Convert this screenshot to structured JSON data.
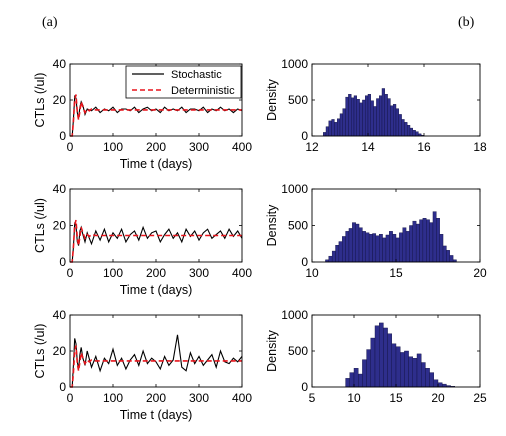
{
  "panel_labels": {
    "left": "(a)",
    "right": "(b)"
  },
  "legend": {
    "stochastic": "Stochastic",
    "deterministic": "Deterministic"
  },
  "colors": {
    "stochastic": "#000000",
    "deterministic": "#e8141b",
    "bar_fill": "#2e2e8c",
    "bar_edge": "#101040"
  },
  "chart_data": [
    {
      "type": "line",
      "xlabel": "Time t (days)",
      "ylabel": "CTLs (/ul)",
      "xlim": [
        0,
        400
      ],
      "ylim": [
        0,
        40
      ],
      "xticks": [
        0,
        100,
        200,
        300,
        400
      ],
      "yticks": [
        0,
        20,
        40
      ],
      "legend_position": "top-right",
      "series": [
        {
          "name": "Stochastic",
          "x": [
            0,
            5,
            8,
            11,
            14,
            17,
            20,
            23,
            26,
            30,
            35,
            40,
            50,
            60,
            70,
            80,
            90,
            100,
            110,
            120,
            130,
            140,
            150,
            160,
            170,
            180,
            190,
            200,
            210,
            220,
            230,
            240,
            250,
            260,
            270,
            280,
            290,
            300,
            310,
            320,
            330,
            340,
            350,
            360,
            370,
            380,
            390,
            400
          ],
          "y": [
            0,
            0,
            9,
            22,
            21,
            13,
            10,
            16,
            19,
            17,
            12,
            15,
            14,
            16,
            13,
            15,
            14,
            16,
            13,
            15,
            15,
            14,
            16,
            13,
            15,
            16,
            14,
            15,
            13,
            16,
            14,
            15,
            14,
            16,
            13,
            15,
            15,
            14,
            16,
            13,
            15,
            14,
            16,
            14,
            15,
            13,
            15,
            14
          ]
        },
        {
          "name": "Deterministic",
          "x": [
            0,
            5,
            8,
            11,
            14,
            17,
            20,
            23,
            26,
            30,
            35,
            40,
            45,
            50,
            60,
            70,
            80,
            400
          ],
          "y": [
            0,
            0,
            8,
            20,
            23,
            13,
            9,
            14,
            19,
            16,
            13,
            15,
            14,
            15,
            14.5,
            14.5,
            14.5,
            14.5
          ]
        }
      ]
    },
    {
      "type": "bar",
      "xlabel": "",
      "ylabel": "Density",
      "xlim": [
        12,
        18
      ],
      "ylim": [
        0,
        1000
      ],
      "xticks": [
        12,
        14,
        16,
        18
      ],
      "yticks": [
        0,
        500,
        1000
      ],
      "categories": [
        12.45,
        12.55,
        12.65,
        12.75,
        12.85,
        12.95,
        13.05,
        13.15,
        13.25,
        13.35,
        13.45,
        13.55,
        13.65,
        13.75,
        13.85,
        13.95,
        14.05,
        14.15,
        14.25,
        14.35,
        14.45,
        14.55,
        14.65,
        14.75,
        14.85,
        14.95,
        15.05,
        15.15,
        15.25,
        15.35,
        15.45,
        15.55,
        15.65,
        15.75,
        15.85,
        15.95
      ],
      "values": [
        50,
        130,
        210,
        230,
        190,
        240,
        310,
        380,
        540,
        580,
        530,
        560,
        510,
        460,
        500,
        560,
        580,
        490,
        410,
        520,
        560,
        660,
        580,
        520,
        420,
        440,
        380,
        300,
        230,
        190,
        150,
        110,
        80,
        60,
        30,
        10
      ]
    },
    {
      "type": "line",
      "xlabel": "Time t (days)",
      "ylabel": "CTLs (/ul)",
      "xlim": [
        0,
        400
      ],
      "ylim": [
        0,
        40
      ],
      "xticks": [
        0,
        100,
        200,
        300,
        400
      ],
      "yticks": [
        0,
        20,
        40
      ],
      "series": [
        {
          "name": "Stochastic",
          "x": [
            0,
            5,
            8,
            11,
            14,
            17,
            20,
            23,
            26,
            30,
            35,
            40,
            50,
            60,
            70,
            80,
            90,
            100,
            110,
            120,
            130,
            140,
            150,
            160,
            170,
            180,
            190,
            200,
            210,
            220,
            230,
            240,
            250,
            260,
            270,
            280,
            290,
            300,
            310,
            320,
            330,
            340,
            350,
            360,
            370,
            380,
            390,
            400
          ],
          "y": [
            0,
            0,
            8,
            21,
            20,
            11,
            9,
            17,
            19,
            15,
            11,
            16,
            10,
            17,
            12,
            18,
            11,
            16,
            13,
            18,
            11,
            15,
            17,
            12,
            19,
            13,
            16,
            17,
            11,
            15,
            18,
            13,
            16,
            11,
            18,
            14,
            17,
            12,
            16,
            18,
            13,
            15,
            17,
            13,
            18,
            14,
            17,
            13
          ]
        },
        {
          "name": "Deterministic",
          "x": [
            0,
            5,
            8,
            11,
            14,
            17,
            20,
            23,
            26,
            30,
            35,
            40,
            45,
            50,
            60,
            70,
            80,
            400
          ],
          "y": [
            0,
            0,
            8,
            20,
            23,
            13,
            9,
            14,
            19,
            16,
            13,
            15,
            14,
            15,
            14.5,
            14.5,
            14.5,
            14.5
          ]
        }
      ]
    },
    {
      "type": "bar",
      "xlabel": "",
      "ylabel": "Density",
      "xlim": [
        10,
        20
      ],
      "ylim": [
        0,
        1000
      ],
      "xticks": [
        10,
        15,
        20
      ],
      "yticks": [
        0,
        500,
        1000
      ],
      "categories": [
        10.9,
        11.1,
        11.3,
        11.5,
        11.7,
        11.9,
        12.1,
        12.3,
        12.5,
        12.7,
        12.9,
        13.1,
        13.3,
        13.5,
        13.7,
        13.9,
        14.1,
        14.3,
        14.5,
        14.7,
        14.9,
        15.1,
        15.3,
        15.5,
        15.7,
        15.9,
        16.1,
        16.3,
        16.5,
        16.7,
        16.9,
        17.1,
        17.3,
        17.5,
        17.7,
        17.9,
        18.1,
        18.3,
        18.5
      ],
      "values": [
        30,
        80,
        150,
        230,
        280,
        350,
        420,
        460,
        540,
        520,
        470,
        420,
        400,
        380,
        390,
        360,
        380,
        330,
        370,
        420,
        380,
        330,
        400,
        470,
        420,
        500,
        560,
        520,
        580,
        600,
        580,
        540,
        690,
        600,
        380,
        220,
        160,
        90,
        30
      ]
    },
    {
      "type": "line",
      "xlabel": "Time t (days)",
      "ylabel": "CTLs (/ul)",
      "xlim": [
        0,
        400
      ],
      "ylim": [
        0,
        40
      ],
      "xticks": [
        0,
        100,
        200,
        300,
        400
      ],
      "yticks": [
        0,
        20,
        40
      ],
      "series": [
        {
          "name": "Stochastic",
          "x": [
            0,
            5,
            8,
            11,
            14,
            17,
            20,
            23,
            26,
            30,
            35,
            40,
            50,
            60,
            70,
            80,
            90,
            100,
            110,
            120,
            130,
            140,
            150,
            160,
            170,
            180,
            190,
            200,
            210,
            220,
            230,
            240,
            250,
            260,
            270,
            280,
            290,
            300,
            310,
            320,
            330,
            340,
            350,
            360,
            370,
            380,
            390,
            400
          ],
          "y": [
            0,
            0,
            12,
            27,
            24,
            14,
            10,
            18,
            22,
            16,
            12,
            20,
            11,
            17,
            9,
            16,
            13,
            21,
            12,
            16,
            10,
            15,
            18,
            12,
            20,
            13,
            16,
            14,
            10,
            17,
            12,
            15,
            29,
            11,
            9,
            19,
            13,
            17,
            12,
            15,
            18,
            11,
            20,
            14,
            13,
            16,
            14,
            17
          ]
        },
        {
          "name": "Deterministic",
          "x": [
            0,
            5,
            8,
            11,
            14,
            17,
            20,
            23,
            26,
            30,
            35,
            40,
            45,
            50,
            60,
            70,
            80,
            400
          ],
          "y": [
            0,
            0,
            8,
            20,
            23,
            13,
            9,
            14,
            19,
            16,
            13,
            15,
            14,
            15,
            14.5,
            14.5,
            14.5,
            14.5
          ]
        }
      ]
    },
    {
      "type": "bar",
      "xlabel": "",
      "ylabel": "Density",
      "xlim": [
        5,
        25
      ],
      "ylim": [
        0,
        1000
      ],
      "xticks": [
        5,
        10,
        15,
        20,
        25
      ],
      "yticks": [
        0,
        500,
        1000
      ],
      "categories": [
        9.25,
        9.75,
        10.25,
        10.75,
        11.25,
        11.75,
        12.25,
        12.75,
        13.25,
        13.75,
        14.25,
        14.75,
        15.25,
        15.75,
        16.25,
        16.75,
        17.25,
        17.75,
        18.25,
        18.75,
        19.25,
        19.75,
        20.25,
        20.75,
        21.25,
        21.75
      ],
      "values": [
        120,
        200,
        260,
        180,
        380,
        520,
        680,
        850,
        890,
        820,
        740,
        600,
        560,
        480,
        500,
        420,
        400,
        460,
        340,
        260,
        200,
        100,
        60,
        40,
        20,
        10
      ]
    }
  ]
}
